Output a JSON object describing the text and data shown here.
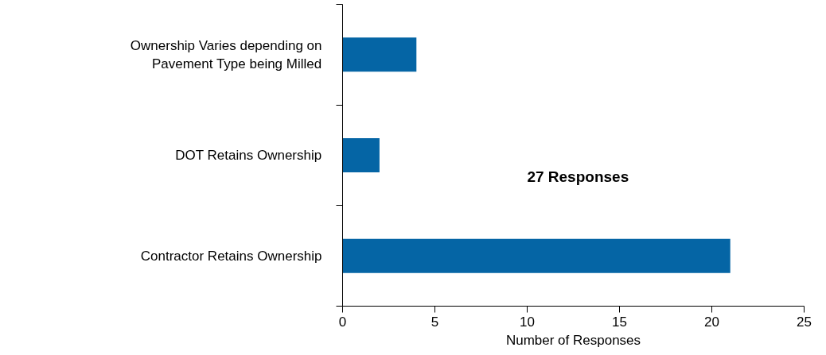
{
  "chart_data": {
    "type": "bar",
    "orientation": "horizontal",
    "categories": [
      "Ownership Varies depending on Pavement Type being Milled",
      "DOT Retains Ownership",
      "Contractor Retains Ownership"
    ],
    "values": [
      4,
      2,
      21
    ],
    "color": "#0565a5",
    "xlabel": "Number of Responses",
    "xlim": [
      0,
      25
    ],
    "xticks": [
      0,
      5,
      10,
      15,
      20,
      25
    ],
    "annotations": [
      "27 Responses"
    ],
    "grid": false
  }
}
